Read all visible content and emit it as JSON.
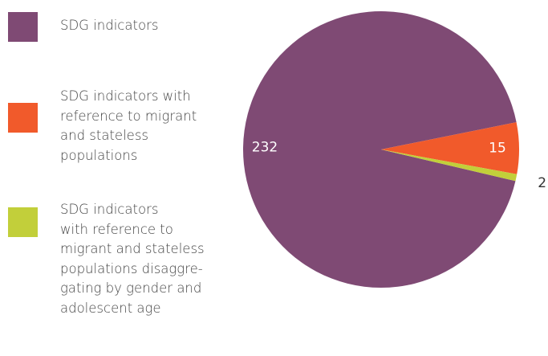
{
  "chart_data": {
    "type": "pie",
    "categories": [
      "SDG indicators",
      "SDG indicators with\nreference to migrant\nand stateless\npopulations",
      "SDG indicators\nwith reference to\nmigrant and stateless\npopulations disaggre-\ngating by gender and\nadolescent age"
    ],
    "values": [
      232,
      15,
      2
    ],
    "colors": [
      "#7f4a74",
      "#f15a2b",
      "#c2cf3a"
    ]
  }
}
